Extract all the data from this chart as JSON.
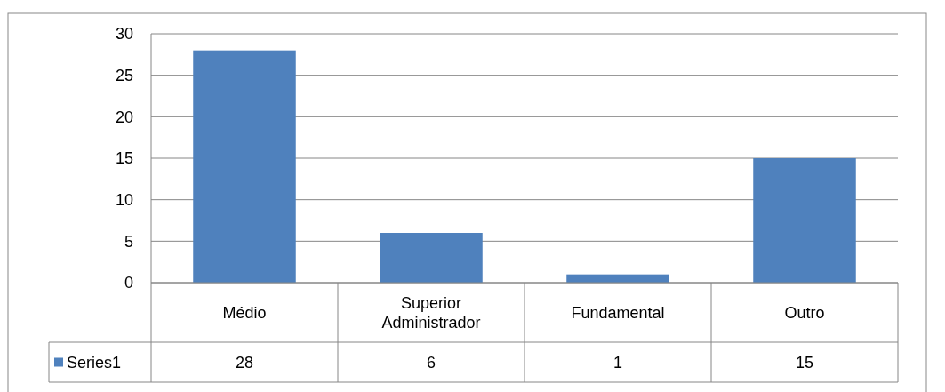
{
  "chart_data": {
    "type": "bar",
    "categories": [
      "Médio",
      "Superior Administrador",
      "Fundamental",
      "Outro"
    ],
    "series": [
      {
        "name": "Series1",
        "color": "#4f81bd",
        "values": [
          28,
          6,
          1,
          15
        ]
      }
    ],
    "ylim": [
      0,
      30
    ],
    "yticks": [
      0,
      5,
      10,
      15,
      20,
      25,
      30
    ],
    "grid": "y",
    "data_labels": true
  }
}
